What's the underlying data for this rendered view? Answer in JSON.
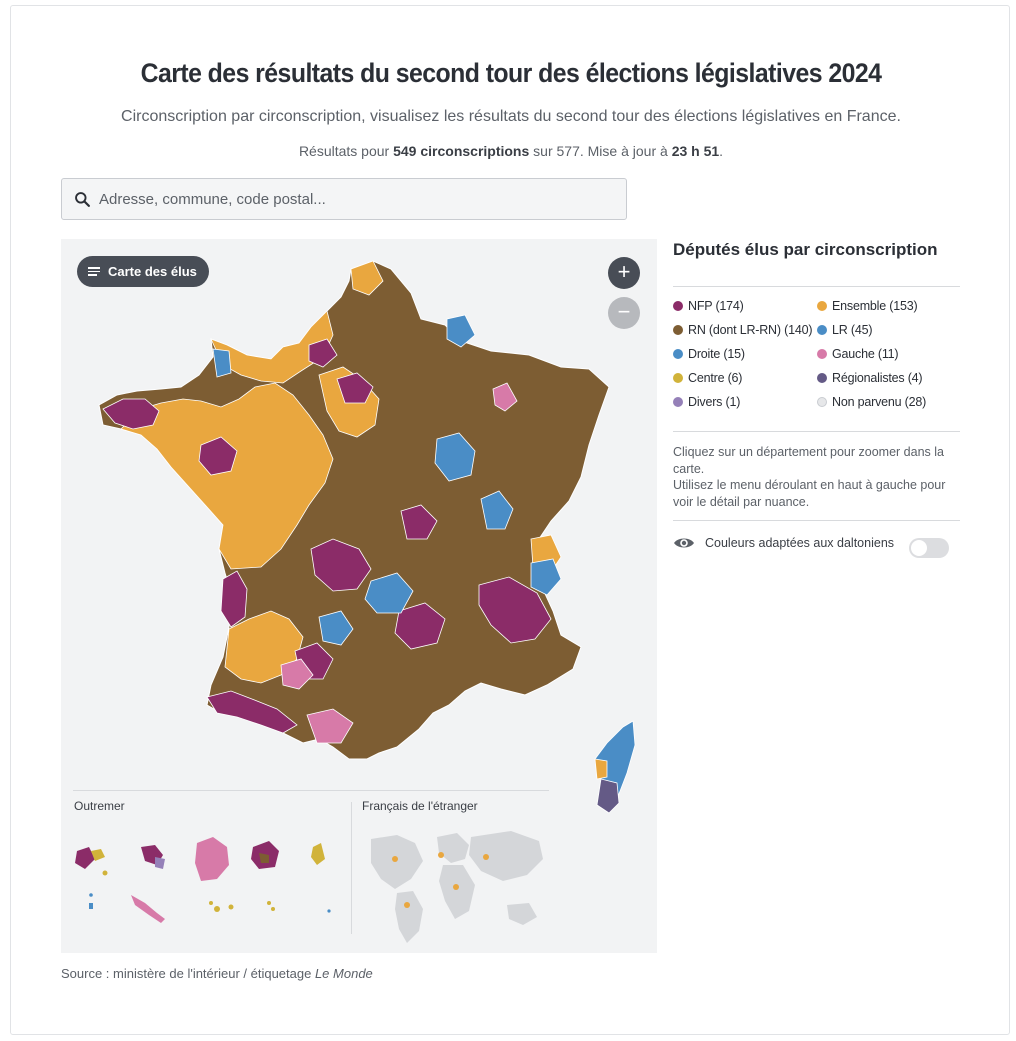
{
  "title": "Carte des résultats du second tour des élections législatives 2024",
  "subtitle": "Circonscription par circonscription, visualisez les résultats du second tour des élections législatives en France.",
  "meta": {
    "prefix": "Résultats pour ",
    "count_bold": "549 circonscriptions",
    "middle": " sur 577.  Mise à jour à ",
    "time_bold": "23 h 51",
    "suffix": "."
  },
  "search": {
    "placeholder": "Adresse, commune, code postal..."
  },
  "map": {
    "menu_label": "Carte des élus",
    "zoom_in": "+",
    "zoom_out": "−",
    "outremer_label": "Outremer",
    "abroad_label": "Français de l'étranger"
  },
  "legend": {
    "title": "Députés élus par circonscription",
    "items": [
      {
        "label": "NFP (174)",
        "color": "#8b2c68"
      },
      {
        "label": "Ensemble (153)",
        "color": "#e9a73f"
      },
      {
        "label": "RN (dont LR-RN) (140)",
        "color": "#7d5d33"
      },
      {
        "label": "LR (45)",
        "color": "#4a8dc6"
      },
      {
        "label": "Droite (15)",
        "color": "#4a8dc6"
      },
      {
        "label": "Gauche (11)",
        "color": "#d77aa8"
      },
      {
        "label": "Centre (6)",
        "color": "#d1b33a"
      },
      {
        "label": "Régionalistes (4)",
        "color": "#645a86"
      },
      {
        "label": "Divers (1)",
        "color": "#9580b8"
      },
      {
        "label": "Non parvenu (28)",
        "color": "#e6e7e9"
      }
    ],
    "help_line1": "Cliquez sur un département pour zoomer dans la carte.",
    "help_line2": "Utilisez le menu déroulant en haut à gauche pour voir le détail par nuance.",
    "colorblind_label": "Couleurs adaptées aux daltoniens"
  },
  "source": {
    "prefix": "Source : ministère de l'intérieur / étiquetage ",
    "italic": "Le Monde"
  },
  "icons": [
    "search-icon",
    "menu-icon",
    "eye-icon",
    "plus-icon",
    "minus-icon"
  ]
}
